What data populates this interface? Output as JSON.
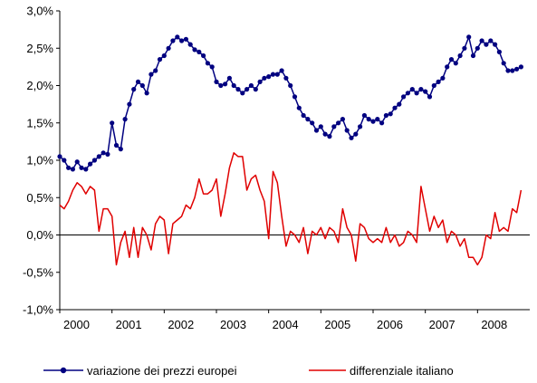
{
  "chart_data": {
    "type": "line",
    "title": "",
    "xlabel": "",
    "ylabel": "",
    "ylim": [
      -1.0,
      3.0
    ],
    "y_ticks": [
      -1.0,
      -0.5,
      0.0,
      0.5,
      1.0,
      1.5,
      2.0,
      2.5,
      3.0
    ],
    "y_tick_labels": [
      "-1,0%",
      "-0,5%",
      "0,0%",
      "0,5%",
      "1,0%",
      "1,5%",
      "2,0%",
      "2,5%",
      "3,0%"
    ],
    "x_ticks": [
      2000,
      2001,
      2002,
      2003,
      2004,
      2005,
      2006,
      2007,
      2008
    ],
    "x_tick_labels": [
      "2000",
      "2001",
      "2002",
      "2003",
      "2004",
      "2005",
      "2006",
      "2007",
      "2008"
    ],
    "x_range": [
      2000.0,
      2008.95
    ],
    "grid": false,
    "legend_position": "bottom",
    "series": [
      {
        "name": "variazione dei prezzi europei",
        "color": "#000080",
        "marker": "circle",
        "x": [
          2000.0,
          2000.0833,
          2000.1667,
          2000.25,
          2000.3333,
          2000.4167,
          2000.5,
          2000.5833,
          2000.6667,
          2000.75,
          2000.8333,
          2000.9167,
          2001.0,
          2001.0833,
          2001.1667,
          2001.25,
          2001.3333,
          2001.4167,
          2001.5,
          2001.5833,
          2001.6667,
          2001.75,
          2001.8333,
          2001.9167,
          2002.0,
          2002.0833,
          2002.1667,
          2002.25,
          2002.3333,
          2002.4167,
          2002.5,
          2002.5833,
          2002.6667,
          2002.75,
          2002.8333,
          2002.9167,
          2003.0,
          2003.0833,
          2003.1667,
          2003.25,
          2003.3333,
          2003.4167,
          2003.5,
          2003.5833,
          2003.6667,
          2003.75,
          2003.8333,
          2003.9167,
          2004.0,
          2004.0833,
          2004.1667,
          2004.25,
          2004.3333,
          2004.4167,
          2004.5,
          2004.5833,
          2004.6667,
          2004.75,
          2004.8333,
          2004.9167,
          2005.0,
          2005.0833,
          2005.1667,
          2005.25,
          2005.3333,
          2005.4167,
          2005.5,
          2005.5833,
          2005.6667,
          2005.75,
          2005.8333,
          2005.9167,
          2006.0,
          2006.0833,
          2006.1667,
          2006.25,
          2006.3333,
          2006.4167,
          2006.5,
          2006.5833,
          2006.6667,
          2006.75,
          2006.8333,
          2006.9167,
          2007.0,
          2007.0833,
          2007.1667,
          2007.25,
          2007.3333,
          2007.4167,
          2007.5,
          2007.5833,
          2007.6667,
          2007.75,
          2007.8333,
          2007.9167,
          2008.0,
          2008.0833,
          2008.1667,
          2008.25,
          2008.3333,
          2008.4167,
          2008.5,
          2008.5833,
          2008.6667,
          2008.75,
          2008.8333
        ],
        "values": [
          1.05,
          1.0,
          0.9,
          0.88,
          0.98,
          0.9,
          0.88,
          0.95,
          1.0,
          1.05,
          1.1,
          1.08,
          1.5,
          1.2,
          1.15,
          1.55,
          1.75,
          1.95,
          2.05,
          2.0,
          1.9,
          2.15,
          2.2,
          2.35,
          2.4,
          2.5,
          2.6,
          2.65,
          2.6,
          2.62,
          2.55,
          2.48,
          2.45,
          2.4,
          2.3,
          2.25,
          2.05,
          2.0,
          2.02,
          2.1,
          2.0,
          1.95,
          1.9,
          1.95,
          2.0,
          1.95,
          2.05,
          2.1,
          2.12,
          2.15,
          2.15,
          2.2,
          2.1,
          2.0,
          1.85,
          1.7,
          1.6,
          1.55,
          1.5,
          1.4,
          1.45,
          1.35,
          1.32,
          1.45,
          1.5,
          1.55,
          1.4,
          1.3,
          1.35,
          1.45,
          1.6,
          1.55,
          1.52,
          1.55,
          1.5,
          1.6,
          1.62,
          1.7,
          1.75,
          1.85,
          1.9,
          1.95,
          1.9,
          1.95,
          1.92,
          1.85,
          2.0,
          2.05,
          2.1,
          2.25,
          2.35,
          2.3,
          2.4,
          2.5,
          2.65,
          2.4,
          2.5,
          2.6,
          2.55,
          2.6,
          2.55,
          2.45,
          2.3,
          2.2,
          2.2,
          2.22,
          2.25
        ],
        "values_note": ""
      },
      {
        "name": "differenziale italiano",
        "color": "#e00000",
        "marker": "none",
        "x": [
          2000.0,
          2000.0833,
          2000.1667,
          2000.25,
          2000.3333,
          2000.4167,
          2000.5,
          2000.5833,
          2000.6667,
          2000.75,
          2000.8333,
          2000.9167,
          2001.0,
          2001.0833,
          2001.1667,
          2001.25,
          2001.3333,
          2001.4167,
          2001.5,
          2001.5833,
          2001.6667,
          2001.75,
          2001.8333,
          2001.9167,
          2002.0,
          2002.0833,
          2002.1667,
          2002.25,
          2002.3333,
          2002.4167,
          2002.5,
          2002.5833,
          2002.6667,
          2002.75,
          2002.8333,
          2002.9167,
          2003.0,
          2003.0833,
          2003.1667,
          2003.25,
          2003.3333,
          2003.4167,
          2003.5,
          2003.5833,
          2003.6667,
          2003.75,
          2003.8333,
          2003.9167,
          2004.0,
          2004.0833,
          2004.1667,
          2004.25,
          2004.3333,
          2004.4167,
          2004.5,
          2004.5833,
          2004.6667,
          2004.75,
          2004.8333,
          2004.9167,
          2005.0,
          2005.0833,
          2005.1667,
          2005.25,
          2005.3333,
          2005.4167,
          2005.5,
          2005.5833,
          2005.6667,
          2005.75,
          2005.8333,
          2005.9167,
          2006.0,
          2006.0833,
          2006.1667,
          2006.25,
          2006.3333,
          2006.4167,
          2006.5,
          2006.5833,
          2006.6667,
          2006.75,
          2006.8333,
          2006.9167,
          2007.0,
          2007.0833,
          2007.1667,
          2007.25,
          2007.3333,
          2007.4167,
          2007.5,
          2007.5833,
          2007.6667,
          2007.75,
          2007.8333,
          2007.9167,
          2008.0,
          2008.0833,
          2008.1667,
          2008.25,
          2008.3333,
          2008.4167,
          2008.5,
          2008.5833,
          2008.6667,
          2008.75,
          2008.8333
        ],
        "values": [
          0.4,
          0.35,
          0.45,
          0.6,
          0.7,
          0.65,
          0.55,
          0.65,
          0.6,
          0.05,
          0.35,
          0.35,
          0.25,
          -0.4,
          -0.1,
          0.05,
          -0.3,
          0.1,
          -0.3,
          0.1,
          0.0,
          -0.2,
          0.15,
          0.25,
          0.2,
          -0.25,
          0.15,
          0.2,
          0.25,
          0.4,
          0.35,
          0.5,
          0.75,
          0.55,
          0.55,
          0.6,
          0.75,
          0.25,
          0.55,
          0.9,
          1.1,
          1.05,
          1.05,
          0.6,
          0.75,
          0.8,
          0.6,
          0.45,
          -0.05,
          0.85,
          0.7,
          0.25,
          -0.15,
          0.05,
          0.0,
          -0.1,
          0.1,
          -0.25,
          0.05,
          0.0,
          0.1,
          -0.05,
          0.1,
          0.05,
          -0.1,
          0.35,
          0.1,
          0.0,
          -0.35,
          0.15,
          0.1,
          -0.05,
          -0.1,
          -0.05,
          -0.1,
          0.1,
          -0.1,
          0.0,
          -0.15,
          -0.1,
          0.05,
          0.0,
          -0.1,
          0.65,
          0.35,
          0.05,
          0.25,
          0.1,
          0.2,
          -0.1,
          0.05,
          0.0,
          -0.15,
          -0.05,
          -0.3,
          -0.3,
          -0.4,
          -0.3,
          0.0,
          -0.05,
          0.3,
          0.05,
          0.1,
          0.05,
          0.35,
          0.3,
          0.6
        ]
      }
    ]
  }
}
